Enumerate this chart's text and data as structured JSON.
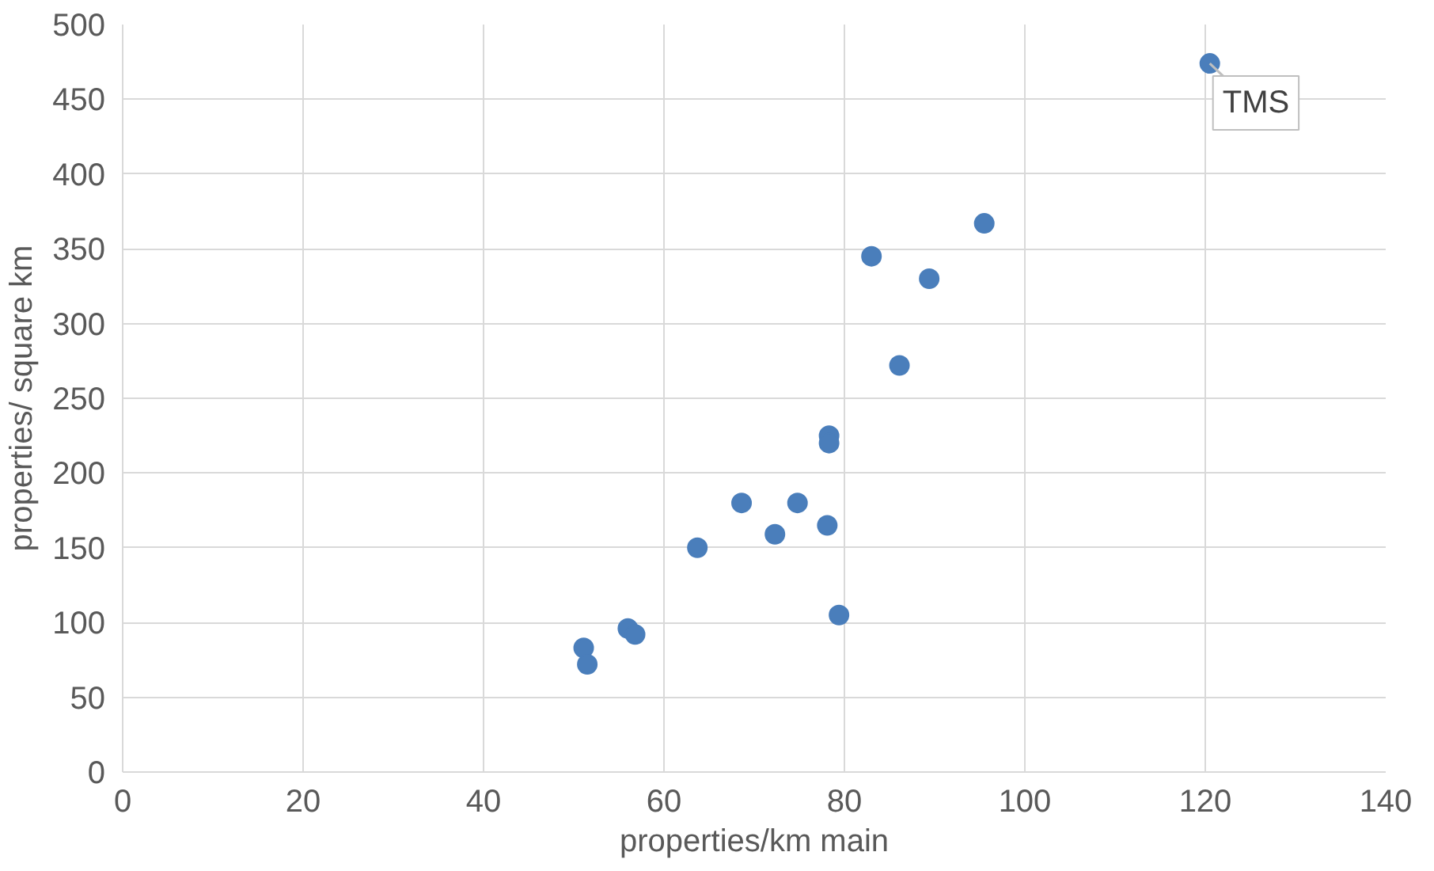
{
  "chart_data": {
    "type": "scatter",
    "xlabel": "properties/km main",
    "ylabel": "properties/ square km",
    "x": [
      51.1,
      51.5,
      56.0,
      56.8,
      63.7,
      68.6,
      72.3,
      74.8,
      78.1,
      78.3,
      78.3,
      79.4,
      83.0,
      86.1,
      89.4,
      95.5,
      120.5
    ],
    "values": [
      83,
      72,
      96,
      92,
      150,
      180,
      159,
      180,
      165,
      225,
      220,
      105,
      345,
      272,
      330,
      367,
      474
    ],
    "color": "#4a7ebb",
    "marker": "circle",
    "grid": true,
    "xlim": [
      0,
      140
    ],
    "xticks": [
      0,
      20,
      40,
      60,
      80,
      100,
      120,
      140
    ],
    "ylim": [
      0,
      500
    ],
    "yticks": [
      0,
      50,
      100,
      150,
      200,
      250,
      300,
      350,
      400,
      450,
      500
    ],
    "annotations": [
      {
        "text": "TMS",
        "x": 120.5,
        "y": 474
      }
    ]
  }
}
